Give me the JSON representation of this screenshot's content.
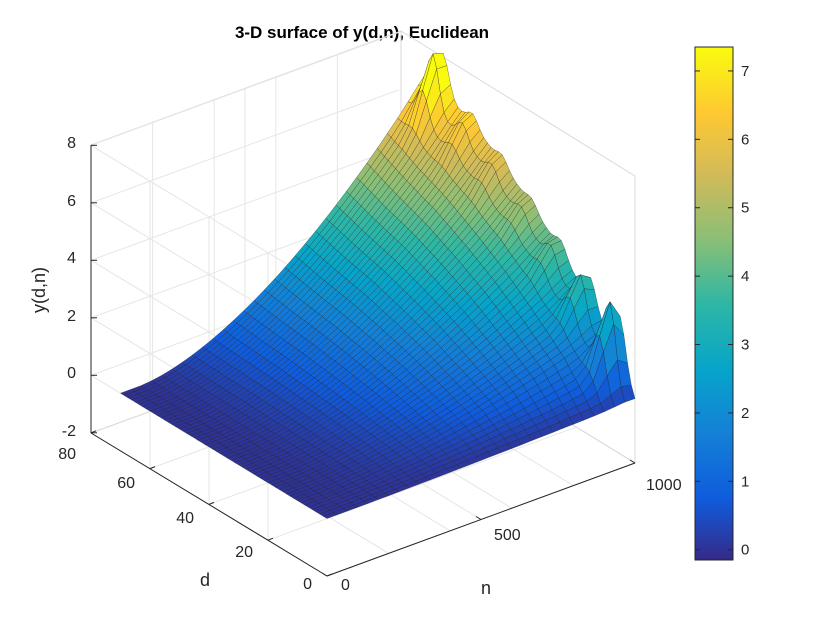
{
  "chart_data": {
    "type": "surface",
    "title": "3-D surface of y(d,n), Euclidean",
    "xlabel": "n",
    "ylabel": "d",
    "zlabel": "y(d,n)",
    "xlim": [
      0,
      1000
    ],
    "ylim": [
      0,
      80
    ],
    "zlim": [
      -2,
      8
    ],
    "x_ticks": [
      "0",
      "500",
      "1000"
    ],
    "y_ticks": [
      "0",
      "20",
      "40",
      "60",
      "80"
    ],
    "z_ticks": [
      "-2",
      "0",
      "2",
      "4",
      "6",
      "8"
    ],
    "colorbar": {
      "range": [
        -0.15,
        7.35
      ],
      "ticks": [
        "0",
        "1",
        "2",
        "3",
        "4",
        "5",
        "6",
        "7"
      ],
      "colormap": "parula"
    },
    "grid": true,
    "surface_samples": {
      "d_values": [
        0,
        10,
        20,
        30,
        40,
        50,
        60,
        70
      ],
      "n_at_start": 0,
      "n_at_end": 1000,
      "y_at_n_end": [
        0.2,
        2.0,
        3.2,
        4.3,
        5.2,
        6.0,
        6.6,
        7.3
      ],
      "ridge_peaks": [
        {
          "d": 5,
          "y": 3.5
        },
        {
          "d": 15,
          "y": 3.4
        },
        {
          "d": 25,
          "y": 3.5
        },
        {
          "d": 35,
          "y": 4.0
        },
        {
          "d": 45,
          "y": 4.7
        },
        {
          "d": 55,
          "y": 5.4
        },
        {
          "d": 65,
          "y": 7.2
        }
      ]
    }
  }
}
